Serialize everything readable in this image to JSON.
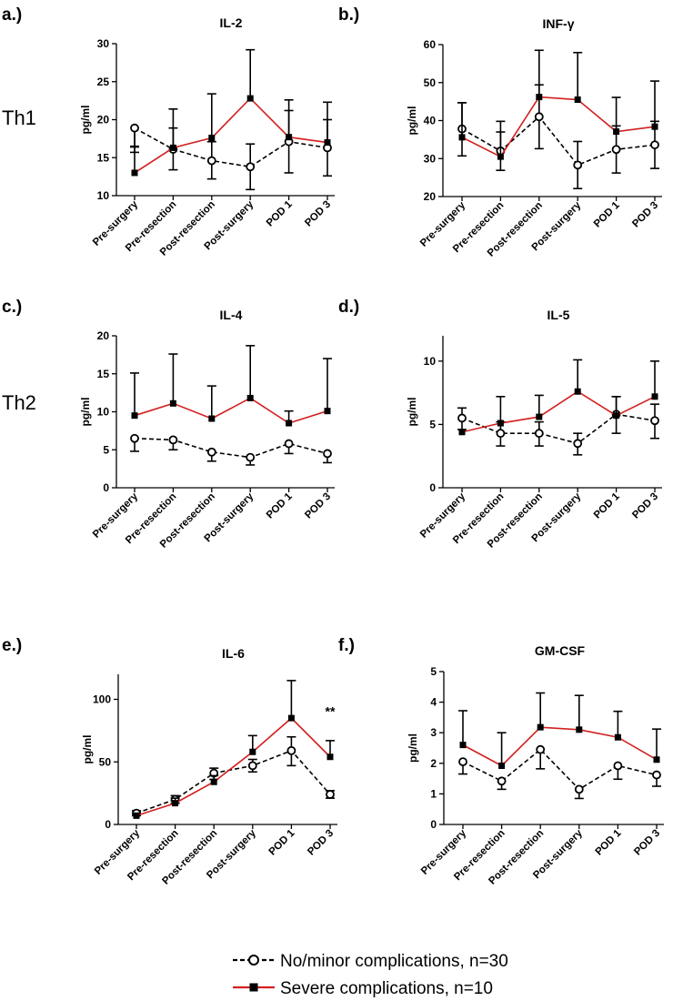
{
  "row_labels": [
    "Th1",
    "Th2"
  ],
  "colors": {
    "no_minor": "#000000",
    "severe": "#d21f1f"
  },
  "legend": [
    {
      "key": "no_minor",
      "label": "No/minor complications, n=30"
    },
    {
      "key": "severe",
      "label": "Severe complications, n=10"
    }
  ],
  "chart_data": [
    {
      "panel": "a.)",
      "type": "line",
      "title": "IL-2",
      "ylabel": "pg/ml",
      "ylim": [
        10,
        30
      ],
      "yticks": [
        10,
        15,
        20,
        25,
        30
      ],
      "categories": [
        "Pre-surgery",
        "Pre-resection",
        "Post-resection",
        "Post-surgery",
        "POD 1",
        "POD 3"
      ],
      "series": [
        {
          "name": "No/minor complications, n=30",
          "values": [
            18.9,
            16.1,
            14.6,
            13.8,
            17.1,
            16.3
          ],
          "err_low": [
            15.7,
            13.4,
            12.2,
            10.8,
            13.0,
            12.6
          ],
          "err_high": [
            16.4,
            18.9,
            17.1,
            16.8,
            21.2,
            20.0
          ]
        },
        {
          "name": "Severe complications, n=10",
          "values": [
            13.0,
            16.3,
            17.6,
            22.8,
            17.7,
            17.0
          ],
          "err_low": [
            13.0,
            16.3,
            17.6,
            22.8,
            17.7,
            17.0
          ],
          "err_high": [
            16.5,
            21.4,
            23.4,
            29.2,
            22.6,
            22.3
          ]
        }
      ]
    },
    {
      "panel": "b.)",
      "type": "line",
      "title": "INF-γ",
      "ylabel": "pg/ml",
      "ylim": [
        20,
        60
      ],
      "yticks": [
        20,
        30,
        40,
        50,
        60
      ],
      "categories": [
        "Pre-surgery",
        "Pre-resection",
        "Post-resection",
        "Post-surgery",
        "POD 1",
        "POD 3"
      ],
      "series": [
        {
          "name": "No/minor complications, n=30",
          "values": [
            37.8,
            32.0,
            41.0,
            28.3,
            32.4,
            33.6
          ],
          "err_low": [
            30.7,
            26.9,
            32.6,
            22.1,
            26.2,
            27.4
          ],
          "err_high": [
            44.7,
            37.0,
            49.4,
            34.5,
            38.6,
            39.8
          ]
        },
        {
          "name": "Severe complications, n=10",
          "values": [
            35.6,
            30.5,
            46.2,
            45.5,
            37.1,
            38.4
          ],
          "err_low": [
            35.6,
            30.5,
            46.2,
            45.5,
            37.1,
            38.4
          ],
          "err_high": [
            44.7,
            39.8,
            58.5,
            57.9,
            46.1,
            50.4
          ]
        }
      ]
    },
    {
      "panel": "c.)",
      "type": "line",
      "title": "IL-4",
      "ylabel": "pg/ml",
      "ylim": [
        0,
        20
      ],
      "yticks": [
        0,
        5,
        10,
        15,
        20
      ],
      "categories": [
        "Pre-surgery",
        "Pre-resection",
        "Post-resection",
        "Post-surgery",
        "POD 1",
        "POD 3"
      ],
      "series": [
        {
          "name": "No/minor complications, n=30",
          "values": [
            6.5,
            6.3,
            4.7,
            4.0,
            5.8,
            4.5
          ],
          "err_low": [
            4.8,
            5.0,
            3.5,
            3.0,
            4.5,
            3.3
          ],
          "err_high": [
            6.5,
            6.3,
            4.7,
            4.0,
            5.8,
            4.5
          ]
        },
        {
          "name": "Severe complications, n=10",
          "values": [
            9.5,
            11.1,
            9.1,
            11.8,
            8.5,
            10.1
          ],
          "err_low": [
            9.5,
            11.1,
            9.1,
            11.8,
            8.5,
            10.1
          ],
          "err_high": [
            15.1,
            17.6,
            13.4,
            18.7,
            10.1,
            17.0
          ]
        }
      ]
    },
    {
      "panel": "d.)",
      "type": "line",
      "title": "IL-5",
      "ylabel": "pg/ml",
      "ylim": [
        0,
        12
      ],
      "yticks": [
        0,
        5,
        10
      ],
      "categories": [
        "Pre-surgery",
        "Pre-resection",
        "Post-resection",
        "Post-surgery",
        "POD 1",
        "POD 3"
      ],
      "series": [
        {
          "name": "No/minor complications, n=30",
          "values": [
            5.5,
            4.3,
            4.3,
            3.5,
            5.8,
            5.3
          ],
          "err_low": [
            4.6,
            3.3,
            3.3,
            2.6,
            4.3,
            3.9
          ],
          "err_high": [
            6.3,
            5.2,
            5.2,
            4.3,
            7.2,
            6.6
          ]
        },
        {
          "name": "Severe complications, n=10",
          "values": [
            4.4,
            5.1,
            5.6,
            7.6,
            5.7,
            7.2
          ],
          "err_low": [
            4.4,
            5.1,
            5.6,
            7.6,
            5.7,
            7.2
          ],
          "err_high": [
            4.4,
            7.2,
            7.3,
            10.1,
            7.2,
            10.0
          ]
        }
      ]
    },
    {
      "panel": "e.)",
      "type": "line",
      "title": "IL-6",
      "ylabel": "pg/ml",
      "ylim": [
        0,
        120
      ],
      "yticks": [
        0,
        50,
        100
      ],
      "categories": [
        "Pre-surgery",
        "Pre-resection",
        "Post-resection",
        "Post-surgery",
        "POD 1",
        "POD 3"
      ],
      "annotation": {
        "text": "**",
        "category": "POD 3",
        "y": 87
      },
      "series": [
        {
          "name": "No/minor complications, n=30",
          "values": [
            9,
            20,
            41,
            47,
            59,
            24
          ],
          "err_low": [
            7,
            17,
            36,
            42,
            47,
            21
          ],
          "err_high": [
            11,
            23,
            45,
            52,
            70,
            27
          ]
        },
        {
          "name": "Severe complications, n=10",
          "values": [
            7,
            17,
            34,
            58,
            85,
            54
          ],
          "err_low": [
            7,
            17,
            34,
            58,
            85,
            54
          ],
          "err_high": [
            9,
            21,
            39,
            71,
            115,
            67
          ]
        }
      ]
    },
    {
      "panel": "f.)",
      "type": "line",
      "title": "GM-CSF",
      "ylabel": "pg/ml",
      "ylim": [
        0,
        5
      ],
      "yticks": [
        0,
        1,
        2,
        3,
        4,
        5
      ],
      "categories": [
        "Pre-surgery",
        "Pre-resection",
        "Post-resection",
        "Post-surgery",
        "POD 1",
        "POD 3"
      ],
      "series": [
        {
          "name": "No/minor complications, n=30",
          "values": [
            2.05,
            1.42,
            2.45,
            1.15,
            1.92,
            1.62
          ],
          "err_low": [
            1.65,
            1.15,
            1.82,
            0.85,
            1.48,
            1.25
          ],
          "err_high": [
            2.05,
            1.42,
            2.45,
            1.15,
            1.92,
            1.62
          ]
        },
        {
          "name": "Severe complications, n=10",
          "values": [
            2.6,
            1.92,
            3.18,
            3.1,
            2.85,
            2.12
          ],
          "err_low": [
            2.6,
            1.92,
            3.18,
            3.1,
            2.85,
            2.12
          ],
          "err_high": [
            3.72,
            3.0,
            4.3,
            4.22,
            3.7,
            3.12
          ]
        }
      ]
    }
  ]
}
